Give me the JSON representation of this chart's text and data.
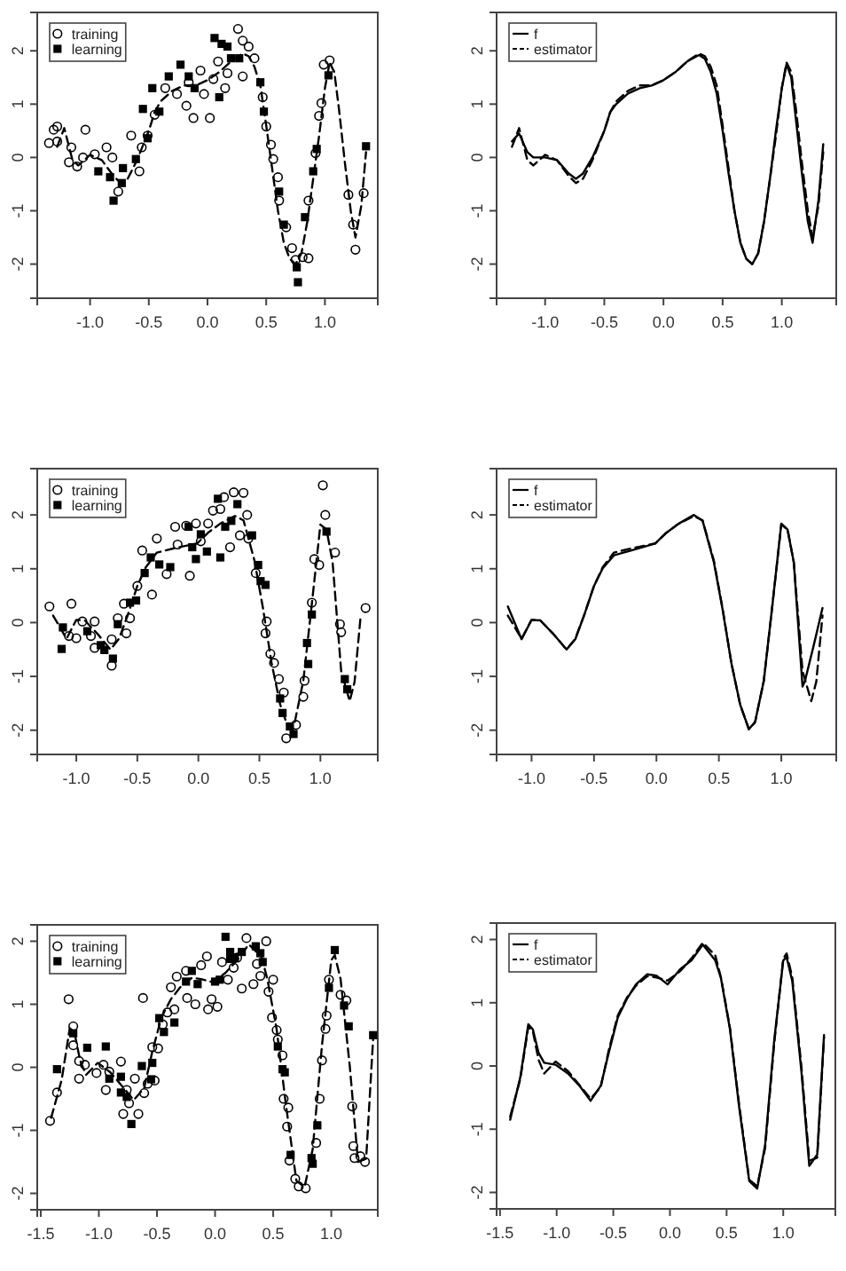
{
  "chart_data": [
    {
      "type": "scatter",
      "xlim": [
        -1.45,
        1.45
      ],
      "ylim": [
        -2.64,
        2.72
      ],
      "xticks": [
        {
          "value": -1,
          "label": "-1.0"
        },
        {
          "value": -0.5,
          "label": "-0.5"
        },
        {
          "value": 0,
          "label": "0.0"
        },
        {
          "value": 0.5,
          "label": "0.5"
        },
        {
          "value": 1,
          "label": "1.0"
        }
      ],
      "yticks": [
        -2,
        -1,
        0,
        1,
        2
      ],
      "legend": "top left",
      "grid": false,
      "series": [
        {
          "name": "training",
          "marker": "circle",
          "color": "#000000",
          "x": [
            -1.35,
            -1.31,
            -1.28,
            -1.28,
            -1.16,
            -1.18,
            -1.11,
            -1.04,
            -1.06,
            -0.96,
            -0.86,
            -0.81,
            -0.76,
            -0.65,
            -0.58,
            -0.56,
            -0.51,
            -0.45,
            -0.36,
            -0.26,
            -0.18,
            -0.12,
            -0.16,
            -0.06,
            -0.03,
            0.02,
            0.05,
            0.09,
            0.15,
            0.17,
            0.26,
            0.3,
            0.3,
            0.35,
            0.4,
            0.47,
            0.5,
            0.54,
            0.56,
            0.6,
            0.61,
            0.67,
            0.72,
            0.75,
            0.81,
            0.86,
            0.86,
            0.92,
            0.95,
            0.97,
            0.99,
            1.04,
            1.2,
            1.24,
            1.26,
            1.33
          ],
          "values": [
            0.27,
            0.52,
            0.58,
            0.3,
            0.19,
            -0.09,
            -0.17,
            0.52,
            0.0,
            0.06,
            0.19,
            0.0,
            -0.64,
            0.41,
            -0.26,
            0.19,
            0.41,
            0.8,
            1.3,
            1.19,
            0.97,
            0.74,
            1.41,
            1.63,
            1.19,
            0.74,
            1.47,
            1.8,
            1.3,
            1.58,
            2.41,
            2.19,
            1.52,
            2.08,
            1.86,
            1.13,
            0.58,
            0.24,
            -0.03,
            -0.37,
            -0.81,
            -1.31,
            -1.7,
            -1.92,
            -1.87,
            -1.89,
            -0.81,
            0.08,
            0.78,
            1.02,
            1.74,
            1.82,
            -0.7,
            -1.26,
            -1.73,
            -0.67
          ]
        },
        {
          "name": "learning",
          "marker": "square",
          "color": "#000000",
          "x": [
            -0.93,
            -0.83,
            -0.8,
            -0.73,
            -0.72,
            -0.61,
            -0.55,
            -0.51,
            -0.47,
            -0.41,
            -0.33,
            -0.23,
            -0.16,
            -0.11,
            0.06,
            0.1,
            0.12,
            0.17,
            0.2,
            0.27,
            0.45,
            0.48,
            0.61,
            0.65,
            0.76,
            0.77,
            0.83,
            0.9,
            0.93,
            1.03,
            1.35
          ],
          "values": [
            -0.26,
            -0.37,
            -0.81,
            -0.48,
            -0.2,
            -0.03,
            0.91,
            0.36,
            1.3,
            0.86,
            1.52,
            1.74,
            1.52,
            1.3,
            2.24,
            1.13,
            2.13,
            2.08,
            1.86,
            1.86,
            1.41,
            0.86,
            -0.64,
            -1.26,
            -2.06,
            -2.34,
            -1.12,
            -0.26,
            0.16,
            1.54,
            0.21
          ]
        },
        {
          "type": "line",
          "line_style": "dashed",
          "marker": "none",
          "color": "#000000",
          "x": [
            -1.28,
            -1.22,
            -1.15,
            -1.1,
            -1.0,
            -0.9,
            -0.8,
            -0.74,
            -0.68,
            -0.6,
            -0.5,
            -0.45,
            -0.4,
            -0.3,
            -0.2,
            -0.1,
            0.0,
            0.1,
            0.2,
            0.3,
            0.35,
            0.4,
            0.45,
            0.5,
            0.55,
            0.6,
            0.65,
            0.7,
            0.75,
            0.8,
            0.85,
            0.9,
            0.95,
            1.0,
            1.04,
            1.08,
            1.12,
            1.17,
            1.22,
            1.26,
            1.31,
            1.35
          ],
          "values": [
            0.2,
            0.55,
            -0.05,
            -0.15,
            0.05,
            -0.05,
            -0.35,
            -0.48,
            -0.4,
            -0.05,
            0.5,
            0.85,
            1.05,
            1.25,
            1.35,
            1.35,
            1.45,
            1.6,
            1.8,
            1.95,
            1.9,
            1.7,
            1.35,
            0.6,
            -0.2,
            -1.0,
            -1.6,
            -1.9,
            -2.0,
            -1.8,
            -1.2,
            -0.4,
            0.4,
            1.3,
            1.78,
            1.6,
            0.9,
            -0.1,
            -1.0,
            -1.5,
            -0.9,
            0.1
          ]
        }
      ]
    },
    {
      "type": "line",
      "xlim": [
        -1.41,
        1.46
      ],
      "ylim": [
        -2.64,
        2.72
      ],
      "xticks": [
        {
          "value": -1,
          "label": "-1.0"
        },
        {
          "value": -0.5,
          "label": "-0.5"
        },
        {
          "value": 0,
          "label": "0.0"
        },
        {
          "value": 0.5,
          "label": "0.5"
        },
        {
          "value": 1,
          "label": "1.0"
        }
      ],
      "yticks": [
        -2,
        -1,
        0,
        1,
        2
      ],
      "legend": "top left",
      "grid": false,
      "series": [
        {
          "name": "f",
          "line_style": "solid",
          "marker": "none",
          "color": "#000000",
          "x": [
            -1.28,
            -1.22,
            -1.15,
            -1.1,
            -1.0,
            -0.9,
            -0.8,
            -0.74,
            -0.68,
            -0.6,
            -0.5,
            -0.45,
            -0.4,
            -0.3,
            -0.2,
            -0.1,
            0.0,
            0.1,
            0.2,
            0.3,
            0.35,
            0.4,
            0.45,
            0.5,
            0.55,
            0.6,
            0.65,
            0.7,
            0.75,
            0.8,
            0.85,
            0.9,
            0.95,
            1.0,
            1.04,
            1.08,
            1.12,
            1.17,
            1.22,
            1.26,
            1.31,
            1.35
          ],
          "values": [
            0.3,
            0.45,
            0.1,
            0.0,
            0.0,
            -0.05,
            -0.3,
            -0.4,
            -0.3,
            0.0,
            0.5,
            0.85,
            1.0,
            1.2,
            1.3,
            1.35,
            1.45,
            1.6,
            1.8,
            1.92,
            1.85,
            1.6,
            1.2,
            0.5,
            -0.3,
            -1.0,
            -1.6,
            -1.9,
            -2.0,
            -1.8,
            -1.2,
            -0.4,
            0.5,
            1.3,
            1.75,
            1.5,
            0.7,
            -0.3,
            -1.2,
            -1.6,
            -0.8,
            0.25
          ]
        },
        {
          "name": "estimator",
          "line_style": "dashed",
          "marker": "none",
          "color": "#000000",
          "x": [
            -1.28,
            -1.22,
            -1.15,
            -1.1,
            -1.0,
            -0.9,
            -0.8,
            -0.74,
            -0.68,
            -0.6,
            -0.5,
            -0.45,
            -0.4,
            -0.3,
            -0.2,
            -0.1,
            0.0,
            0.1,
            0.2,
            0.3,
            0.35,
            0.4,
            0.45,
            0.5,
            0.55,
            0.6,
            0.65,
            0.7,
            0.75,
            0.8,
            0.85,
            0.9,
            0.95,
            1.0,
            1.04,
            1.08,
            1.12,
            1.17,
            1.22,
            1.26,
            1.31,
            1.35
          ],
          "values": [
            0.2,
            0.55,
            -0.05,
            -0.15,
            0.05,
            -0.05,
            -0.35,
            -0.48,
            -0.4,
            -0.05,
            0.5,
            0.85,
            1.05,
            1.25,
            1.35,
            1.35,
            1.45,
            1.6,
            1.8,
            1.95,
            1.9,
            1.7,
            1.35,
            0.6,
            -0.2,
            -1.0,
            -1.6,
            -1.9,
            -2.0,
            -1.8,
            -1.2,
            -0.4,
            0.4,
            1.3,
            1.78,
            1.6,
            0.9,
            -0.1,
            -1.0,
            -1.5,
            -0.9,
            0.1
          ]
        }
      ]
    },
    {
      "type": "scatter",
      "xlim": [
        -1.32,
        1.47
      ],
      "ylim": [
        -2.45,
        2.86
      ],
      "xticks": [
        {
          "value": -1,
          "label": "-1.0"
        },
        {
          "value": -0.5,
          "label": "-0.5"
        },
        {
          "value": 0,
          "label": "0.0"
        },
        {
          "value": 0.5,
          "label": "0.5"
        },
        {
          "value": 1,
          "label": "1.0"
        }
      ],
      "yticks": [
        -2,
        -1,
        0,
        1,
        2
      ],
      "legend": "top left",
      "grid": false,
      "series": [
        {
          "name": "training",
          "marker": "circle",
          "color": "#000000",
          "x": [
            -1.22,
            -1.04,
            -1.06,
            -1.0,
            -0.95,
            -0.88,
            -0.85,
            -0.85,
            -0.71,
            -0.71,
            -0.66,
            -0.59,
            -0.61,
            -0.56,
            -0.5,
            -0.46,
            -0.38,
            -0.34,
            -0.26,
            -0.19,
            -0.17,
            -0.1,
            -0.07,
            -0.02,
            0.02,
            0.08,
            0.12,
            0.18,
            0.21,
            0.26,
            0.29,
            0.34,
            0.37,
            0.4,
            0.41,
            0.47,
            0.56,
            0.55,
            0.59,
            0.62,
            0.66,
            0.7,
            0.72,
            0.8,
            0.86,
            0.87,
            0.93,
            0.95,
            0.99,
            1.02,
            1.04,
            1.12,
            1.16,
            1.17,
            1.37
          ],
          "values": [
            0.3,
            0.35,
            -0.25,
            -0.29,
            0.02,
            -0.25,
            0.02,
            -0.47,
            -0.31,
            -0.8,
            0.08,
            -0.2,
            0.35,
            0.08,
            0.68,
            1.34,
            0.52,
            1.56,
            0.9,
            1.78,
            1.45,
            1.8,
            0.87,
            1.84,
            1.51,
            1.84,
            2.08,
            2.11,
            2.33,
            1.4,
            2.42,
            1.62,
            2.41,
            2.0,
            1.56,
            0.92,
            0.02,
            -0.2,
            -0.58,
            -0.75,
            -1.05,
            -1.3,
            -2.15,
            -1.9,
            -1.38,
            -1.08,
            0.37,
            1.18,
            1.07,
            2.55,
            2.0,
            1.3,
            -0.03,
            -0.18,
            0.27
          ]
        },
        {
          "name": "learning",
          "marker": "square",
          "color": "#000000",
          "x": [
            -1.12,
            -1.11,
            -0.91,
            -0.8,
            -0.77,
            -0.7,
            -0.66,
            -0.56,
            -0.51,
            -0.44,
            -0.39,
            -0.32,
            -0.23,
            -0.08,
            -0.05,
            -0.02,
            0.02,
            0.07,
            0.16,
            0.18,
            0.22,
            0.27,
            0.32,
            0.44,
            0.49,
            0.51,
            0.55,
            0.67,
            0.69,
            0.75,
            0.78,
            0.89,
            0.9,
            0.93,
            1.05,
            1.2,
            1.22
          ],
          "values": [
            -0.49,
            -0.09,
            -0.16,
            -0.42,
            -0.51,
            -0.67,
            -0.03,
            0.37,
            0.41,
            0.92,
            1.21,
            1.08,
            1.03,
            1.78,
            1.4,
            1.18,
            1.64,
            1.32,
            2.3,
            1.21,
            1.78,
            1.89,
            2.2,
            1.62,
            1.07,
            0.77,
            0.7,
            -1.41,
            -1.68,
            -1.93,
            -2.07,
            -0.38,
            -0.77,
            0.15,
            1.69,
            -1.05,
            -1.24
          ]
        },
        {
          "type": "line",
          "line_style": "dashed",
          "marker": "none",
          "color": "#000000",
          "x": [
            -1.19,
            -1.08,
            -1.0,
            -0.93,
            -0.83,
            -0.72,
            -0.65,
            -0.58,
            -0.5,
            -0.43,
            -0.34,
            -0.2,
            -0.01,
            0.08,
            0.18,
            0.3,
            0.37,
            0.46,
            0.53,
            0.6,
            0.67,
            0.74,
            0.79,
            0.86,
            0.93,
            1.0,
            1.05,
            1.1,
            1.17,
            1.24,
            1.28,
            1.33
          ],
          "values": [
            0.13,
            -0.3,
            0.05,
            0.04,
            -0.2,
            -0.5,
            -0.3,
            0.13,
            0.68,
            1.03,
            1.3,
            1.38,
            1.47,
            1.67,
            1.84,
            1.98,
            1.9,
            1.15,
            0.26,
            -0.75,
            -1.52,
            -1.98,
            -1.85,
            -1.08,
            0.35,
            1.82,
            1.73,
            1.12,
            -0.9,
            -1.46,
            -1.1,
            0.13
          ]
        }
      ]
    },
    {
      "type": "line",
      "xlim": [
        -1.28,
        1.44
      ],
      "ylim": [
        -2.45,
        2.86
      ],
      "xticks": [
        {
          "value": -1,
          "label": "-1.0"
        },
        {
          "value": -0.5,
          "label": "-0.5"
        },
        {
          "value": 0,
          "label": "0.0"
        },
        {
          "value": 0.5,
          "label": "0.5"
        },
        {
          "value": 1,
          "label": "1.0"
        }
      ],
      "yticks": [
        -2,
        -1,
        0,
        1,
        2
      ],
      "legend": "top left",
      "grid": false,
      "series": [
        {
          "name": "f",
          "line_style": "solid",
          "marker": "none",
          "color": "#000000",
          "x": [
            -1.19,
            -1.08,
            -1.0,
            -0.93,
            -0.83,
            -0.72,
            -0.65,
            -0.58,
            -0.5,
            -0.43,
            -0.34,
            -0.2,
            -0.01,
            0.08,
            0.18,
            0.3,
            0.37,
            0.46,
            0.53,
            0.6,
            0.67,
            0.74,
            0.79,
            0.86,
            0.93,
            1.0,
            1.05,
            1.1,
            1.17,
            1.19,
            1.26,
            1.33
          ],
          "values": [
            0.3,
            -0.31,
            0.05,
            0.04,
            -0.2,
            -0.5,
            -0.31,
            0.13,
            0.68,
            1.01,
            1.25,
            1.34,
            1.47,
            1.67,
            1.84,
            2.0,
            1.89,
            1.12,
            0.24,
            -0.75,
            -1.52,
            -1.98,
            -1.85,
            -1.08,
            0.35,
            1.84,
            1.73,
            1.12,
            -1.19,
            -1.08,
            -0.42,
            0.27
          ]
        },
        {
          "name": "estimator",
          "line_style": "dashed",
          "marker": "none",
          "color": "#000000",
          "x": [
            -1.19,
            -1.08,
            -1.0,
            -0.93,
            -0.83,
            -0.72,
            -0.65,
            -0.58,
            -0.5,
            -0.43,
            -0.34,
            -0.2,
            -0.01,
            0.08,
            0.18,
            0.3,
            0.37,
            0.46,
            0.53,
            0.6,
            0.67,
            0.74,
            0.79,
            0.86,
            0.93,
            1.0,
            1.05,
            1.1,
            1.17,
            1.24,
            1.28,
            1.33
          ],
          "values": [
            0.13,
            -0.3,
            0.05,
            0.04,
            -0.2,
            -0.5,
            -0.3,
            0.13,
            0.68,
            1.03,
            1.3,
            1.38,
            1.47,
            1.67,
            1.84,
            1.98,
            1.9,
            1.15,
            0.26,
            -0.75,
            -1.52,
            -1.98,
            -1.85,
            -1.08,
            0.35,
            1.82,
            1.73,
            1.12,
            -0.9,
            -1.46,
            -1.1,
            0.13
          ]
        }
      ]
    },
    {
      "type": "scatter",
      "xlim": [
        -1.53,
        1.4
      ],
      "ylim": [
        -2.26,
        2.26
      ],
      "xticks": [
        {
          "value": -1.5,
          "label": "-1.5"
        },
        {
          "value": -1,
          "label": "-1.0"
        },
        {
          "value": -0.5,
          "label": "-0.5"
        },
        {
          "value": 0,
          "label": "0.0"
        },
        {
          "value": 0.5,
          "label": "0.5"
        },
        {
          "value": 1,
          "label": "1.0"
        }
      ],
      "yticks": [
        -2,
        -1,
        0,
        1,
        2
      ],
      "legend": "top left",
      "grid": false,
      "series": [
        {
          "name": "training",
          "marker": "circle",
          "color": "#000000",
          "x": [
            -1.42,
            -1.36,
            -1.26,
            -1.22,
            -1.22,
            -1.17,
            -1.17,
            -1.12,
            -1.02,
            -0.96,
            -0.94,
            -0.91,
            -0.81,
            -0.79,
            -0.76,
            -0.74,
            -0.69,
            -0.66,
            -0.62,
            -0.61,
            -0.58,
            -0.54,
            -0.52,
            -0.49,
            -0.45,
            -0.41,
            -0.38,
            -0.35,
            -0.33,
            -0.25,
            -0.24,
            -0.17,
            -0.12,
            -0.07,
            -0.06,
            -0.03,
            0.02,
            0.06,
            0.11,
            0.16,
            0.19,
            0.23,
            0.27,
            0.33,
            0.36,
            0.39,
            0.44,
            0.46,
            0.5,
            0.49,
            0.53,
            0.54,
            0.58,
            0.59,
            0.63,
            0.62,
            0.64,
            0.69,
            0.72,
            0.78,
            0.87,
            0.9,
            0.92,
            0.95,
            0.96,
            0.98,
            1.08,
            1.13,
            1.18,
            1.19,
            1.2,
            1.25,
            1.29
          ],
          "values": [
            -0.85,
            -0.4,
            1.08,
            0.65,
            0.35,
            0.1,
            -0.18,
            0.04,
            -0.09,
            0.04,
            -0.36,
            -0.07,
            0.09,
            -0.74,
            -0.36,
            -0.57,
            -0.18,
            -0.74,
            1.1,
            -0.41,
            -0.26,
            0.32,
            -0.21,
            0.3,
            0.68,
            0.87,
            1.27,
            0.92,
            1.44,
            1.53,
            1.1,
            1.0,
            1.62,
            1.76,
            0.92,
            1.08,
            0.96,
            1.67,
            1.39,
            1.58,
            1.74,
            1.25,
            2.05,
            1.32,
            1.64,
            1.45,
            2.0,
            1.2,
            1.39,
            0.79,
            0.59,
            0.44,
            0.19,
            -0.5,
            -0.64,
            -0.94,
            -1.48,
            -1.77,
            -1.89,
            -1.92,
            -1.2,
            -0.5,
            0.11,
            0.61,
            0.82,
            1.39,
            1.15,
            1.06,
            -0.62,
            -1.25,
            -1.44,
            -1.41,
            -1.5
          ]
        },
        {
          "name": "learning",
          "marker": "square",
          "color": "#000000",
          "x": [
            -1.36,
            -1.22,
            -1.1,
            -0.94,
            -0.91,
            -0.81,
            -0.81,
            -0.76,
            -0.72,
            -0.63,
            -0.54,
            -0.55,
            -0.48,
            -0.44,
            -0.35,
            -0.25,
            -0.2,
            -0.15,
            0.0,
            0.04,
            0.09,
            0.13,
            0.13,
            0.17,
            0.23,
            0.35,
            0.39,
            0.41,
            0.54,
            0.58,
            0.6,
            0.65,
            0.83,
            0.84,
            0.88,
            0.98,
            1.03,
            1.11,
            1.15,
            1.36
          ],
          "values": [
            -0.03,
            0.54,
            0.31,
            0.33,
            -0.18,
            -0.15,
            -0.4,
            -0.47,
            -0.9,
            0.02,
            0.07,
            -0.19,
            0.78,
            0.56,
            0.71,
            1.36,
            1.53,
            1.32,
            1.36,
            1.39,
            2.07,
            1.83,
            1.72,
            1.74,
            1.83,
            1.92,
            1.81,
            1.67,
            0.33,
            -0.03,
            -0.08,
            -1.39,
            -1.44,
            -1.53,
            -0.92,
            1.26,
            1.86,
            0.98,
            0.65,
            0.51
          ]
        },
        {
          "type": "line",
          "line_style": "dashed",
          "marker": "none",
          "color": "#000000",
          "x": [
            -1.41,
            -1.32,
            -1.25,
            -1.21,
            -1.16,
            -1.11,
            -1.01,
            -0.9,
            -0.8,
            -0.7,
            -0.61,
            -0.54,
            -0.46,
            -0.38,
            -0.3,
            -0.2,
            -0.12,
            -0.02,
            0.09,
            0.19,
            0.29,
            0.4,
            0.45,
            0.53,
            0.61,
            0.7,
            0.77,
            0.84,
            0.92,
            1.0,
            1.03,
            1.08,
            1.16,
            1.23,
            1.3,
            1.36
          ],
          "values": [
            -0.8,
            -0.2,
            0.62,
            0.55,
            0.1,
            -0.12,
            0.07,
            -0.08,
            -0.3,
            -0.52,
            -0.33,
            0.25,
            0.8,
            1.08,
            1.27,
            1.42,
            1.4,
            1.35,
            1.5,
            1.7,
            1.95,
            1.75,
            1.4,
            0.6,
            -0.6,
            -1.8,
            -1.9,
            -1.3,
            0.35,
            1.7,
            1.78,
            1.4,
            0.0,
            -1.5,
            -1.45,
            0.45
          ]
        }
      ]
    },
    {
      "type": "line",
      "xlim": [
        -1.53,
        1.46
      ],
      "ylim": [
        -2.26,
        2.26
      ],
      "xticks": [
        {
          "value": -1.5,
          "label": "-1.5"
        },
        {
          "value": -1,
          "label": "-1.0"
        },
        {
          "value": -0.5,
          "label": "-0.5"
        },
        {
          "value": 0,
          "label": "0.0"
        },
        {
          "value": 0.5,
          "label": "0.5"
        },
        {
          "value": 1,
          "label": "1.0"
        }
      ],
      "yticks": [
        -2,
        -1,
        0,
        1,
        2
      ],
      "legend": "top left",
      "grid": false,
      "series": [
        {
          "name": "f",
          "line_style": "solid",
          "marker": "none",
          "color": "#000000",
          "x": [
            -1.41,
            -1.32,
            -1.25,
            -1.21,
            -1.16,
            -1.11,
            -1.01,
            -0.9,
            -0.8,
            -0.7,
            -0.61,
            -0.54,
            -0.46,
            -0.38,
            -0.3,
            -0.2,
            -0.12,
            -0.02,
            0.09,
            0.19,
            0.29,
            0.4,
            0.45,
            0.53,
            0.61,
            0.7,
            0.77,
            0.84,
            0.92,
            1.0,
            1.03,
            1.08,
            1.16,
            1.23,
            1.3,
            1.36
          ],
          "values": [
            -0.85,
            -0.17,
            0.66,
            0.58,
            0.21,
            0.05,
            0.02,
            -0.12,
            -0.31,
            -0.55,
            -0.31,
            0.21,
            0.77,
            1.06,
            1.29,
            1.45,
            1.43,
            1.29,
            1.53,
            1.67,
            1.92,
            1.67,
            1.39,
            0.58,
            -0.64,
            -1.82,
            -1.94,
            -1.25,
            0.4,
            1.67,
            1.72,
            1.34,
            -0.08,
            -1.58,
            -1.4,
            0.49
          ]
        },
        {
          "name": "estimator",
          "line_style": "dashed",
          "marker": "none",
          "color": "#000000",
          "x": [
            -1.41,
            -1.32,
            -1.25,
            -1.21,
            -1.16,
            -1.11,
            -1.01,
            -0.9,
            -0.8,
            -0.7,
            -0.61,
            -0.54,
            -0.46,
            -0.38,
            -0.3,
            -0.2,
            -0.12,
            -0.02,
            0.09,
            0.19,
            0.29,
            0.4,
            0.45,
            0.53,
            0.61,
            0.7,
            0.77,
            0.84,
            0.92,
            1.0,
            1.03,
            1.08,
            1.16,
            1.23,
            1.3,
            1.36
          ],
          "values": [
            -0.8,
            -0.2,
            0.62,
            0.55,
            0.1,
            -0.12,
            0.07,
            -0.08,
            -0.3,
            -0.52,
            -0.33,
            0.25,
            0.8,
            1.08,
            1.27,
            1.42,
            1.4,
            1.35,
            1.5,
            1.7,
            1.95,
            1.75,
            1.4,
            0.6,
            -0.6,
            -1.8,
            -1.9,
            -1.3,
            0.35,
            1.7,
            1.78,
            1.4,
            0.0,
            -1.5,
            -1.45,
            0.45
          ]
        }
      ]
    }
  ]
}
